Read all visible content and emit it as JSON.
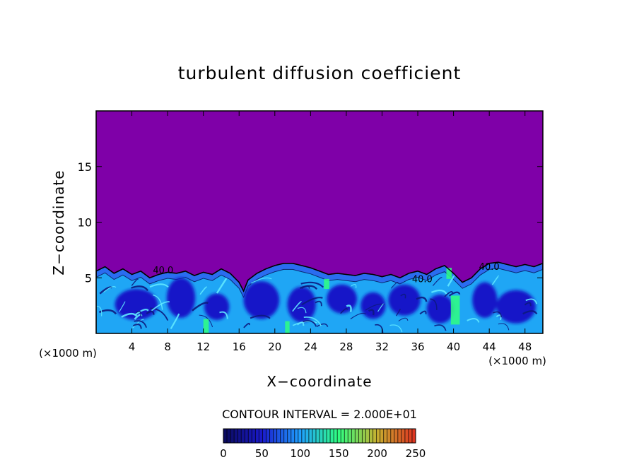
{
  "chart_data": {
    "type": "heatmap",
    "title": "turbulent diffusion coefficient",
    "xlabel": "X−coordinate",
    "ylabel": "Z−coordinate",
    "x_unit": "(×1000 m)",
    "xlim": [
      0,
      50
    ],
    "ylim": [
      0,
      20
    ],
    "x_ticks": [
      4,
      8,
      12,
      16,
      20,
      24,
      28,
      32,
      36,
      40,
      44,
      48
    ],
    "y_ticks": [
      5,
      10,
      15
    ],
    "contour_interval_label": "CONTOUR INTERVAL = 2.000E+01",
    "contour_labels": [
      {
        "text": "40.0",
        "x": 7.5,
        "z": 5.4
      },
      {
        "text": "40.0",
        "x": 36.5,
        "z": 4.6
      },
      {
        "text": "40.0",
        "x": 44.0,
        "z": 5.7
      }
    ],
    "colorbar": {
      "min": 0,
      "max": 250,
      "ticks": [
        0,
        50,
        100,
        150,
        200,
        250
      ],
      "colors": [
        "#0a0a5a",
        "#1a1acc",
        "#1fa0ff",
        "#30ff80",
        "#c8b030",
        "#e03020"
      ]
    },
    "background_color": "#7f00a8",
    "cloud_top_profile": [
      [
        0,
        5.6
      ],
      [
        1,
        6.0
      ],
      [
        2,
        5.4
      ],
      [
        3,
        5.8
      ],
      [
        4,
        5.3
      ],
      [
        5,
        5.6
      ],
      [
        6,
        5.0
      ],
      [
        7,
        5.3
      ],
      [
        8,
        5.5
      ],
      [
        9,
        5.4
      ],
      [
        10,
        5.6
      ],
      [
        11,
        5.2
      ],
      [
        12,
        5.5
      ],
      [
        13,
        5.3
      ],
      [
        14,
        5.8
      ],
      [
        15,
        5.4
      ],
      [
        16,
        4.6
      ],
      [
        16.5,
        3.8
      ],
      [
        17,
        4.8
      ],
      [
        18,
        5.4
      ],
      [
        19,
        5.8
      ],
      [
        20,
        6.1
      ],
      [
        21,
        6.3
      ],
      [
        22,
        6.3
      ],
      [
        23,
        6.1
      ],
      [
        24,
        5.9
      ],
      [
        25,
        5.6
      ],
      [
        26,
        5.3
      ],
      [
        27,
        5.4
      ],
      [
        28,
        5.3
      ],
      [
        29,
        5.2
      ],
      [
        30,
        5.4
      ],
      [
        31,
        5.3
      ],
      [
        32,
        5.1
      ],
      [
        33,
        5.3
      ],
      [
        34,
        5.0
      ],
      [
        35,
        5.4
      ],
      [
        36,
        5.6
      ],
      [
        37,
        5.3
      ],
      [
        38,
        5.8
      ],
      [
        39,
        6.1
      ],
      [
        40,
        5.4
      ],
      [
        41,
        4.6
      ],
      [
        42,
        5.0
      ],
      [
        43,
        5.8
      ],
      [
        44,
        6.3
      ],
      [
        45,
        6.4
      ],
      [
        46,
        6.2
      ],
      [
        47,
        6.0
      ],
      [
        48,
        6.2
      ],
      [
        49,
        6.0
      ],
      [
        50,
        6.3
      ]
    ]
  }
}
